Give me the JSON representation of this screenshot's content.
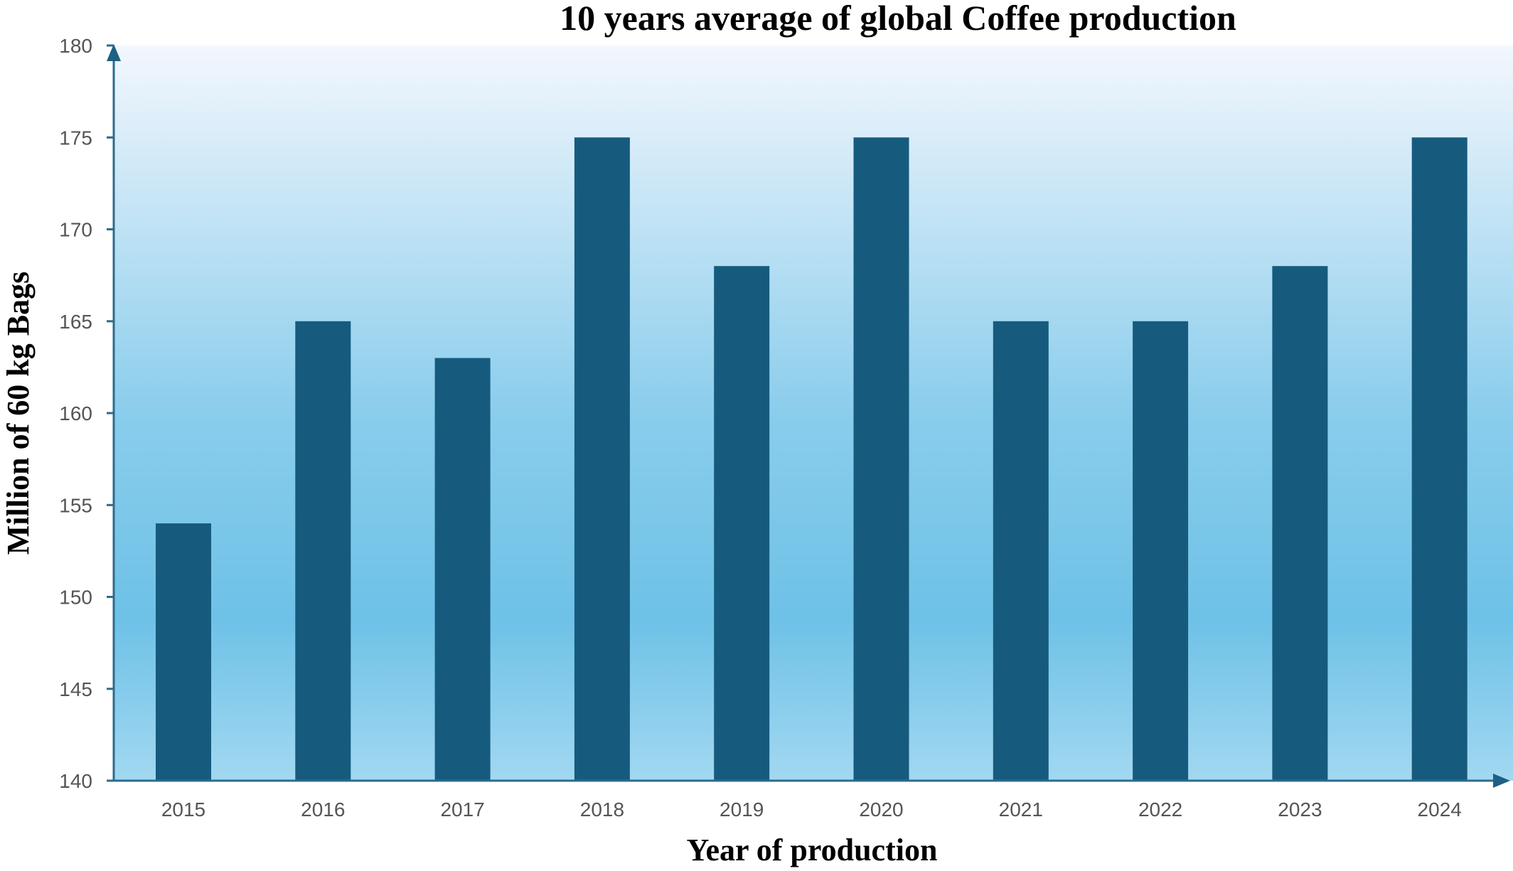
{
  "chart_data": {
    "type": "bar",
    "title": "10 years average of global Coffee production",
    "xlabel": "Year of production",
    "ylabel": "Million of 60 kg Bags",
    "categories": [
      "2015",
      "2016",
      "2017",
      "2018",
      "2019",
      "2020",
      "2021",
      "2022",
      "2023",
      "2024"
    ],
    "series": [
      {
        "values": [
          154,
          165,
          163,
          175,
          168,
          175,
          165,
          165,
          168,
          175
        ]
      }
    ],
    "ylim": [
      140,
      180
    ],
    "yticks": [
      140,
      145,
      150,
      155,
      160,
      165,
      170,
      175,
      180
    ],
    "grid": false,
    "legend": "none",
    "colors": {
      "bar": "#165B7E",
      "axis": "#2D6B8C",
      "background_top": "#F3F7FD",
      "background_mid": "#6EC1E7",
      "background_bottom": "#9DD6F1"
    }
  }
}
